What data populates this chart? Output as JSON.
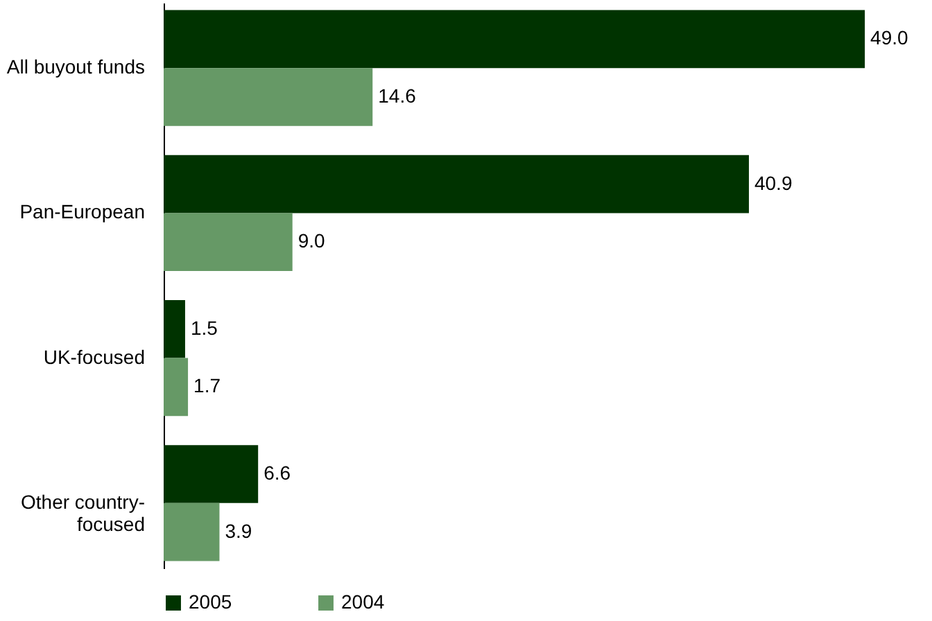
{
  "chart_data": {
    "type": "bar",
    "orientation": "horizontal",
    "categories": [
      "All buyout funds",
      "Pan-European",
      "UK-focused",
      "Other country-focused"
    ],
    "series": [
      {
        "name": "2005",
        "color": "#003300",
        "values": [
          49.0,
          40.9,
          1.5,
          6.6
        ],
        "value_labels": [
          "49.0",
          "40.9",
          "1.5",
          "6.6"
        ]
      },
      {
        "name": "2004",
        "color": "#669966",
        "values": [
          14.6,
          9.0,
          1.7,
          3.9
        ],
        "value_labels": [
          "14.6",
          "9.0",
          "1.7",
          "3.9"
        ]
      }
    ],
    "legend": "bottom",
    "grid": false
  }
}
